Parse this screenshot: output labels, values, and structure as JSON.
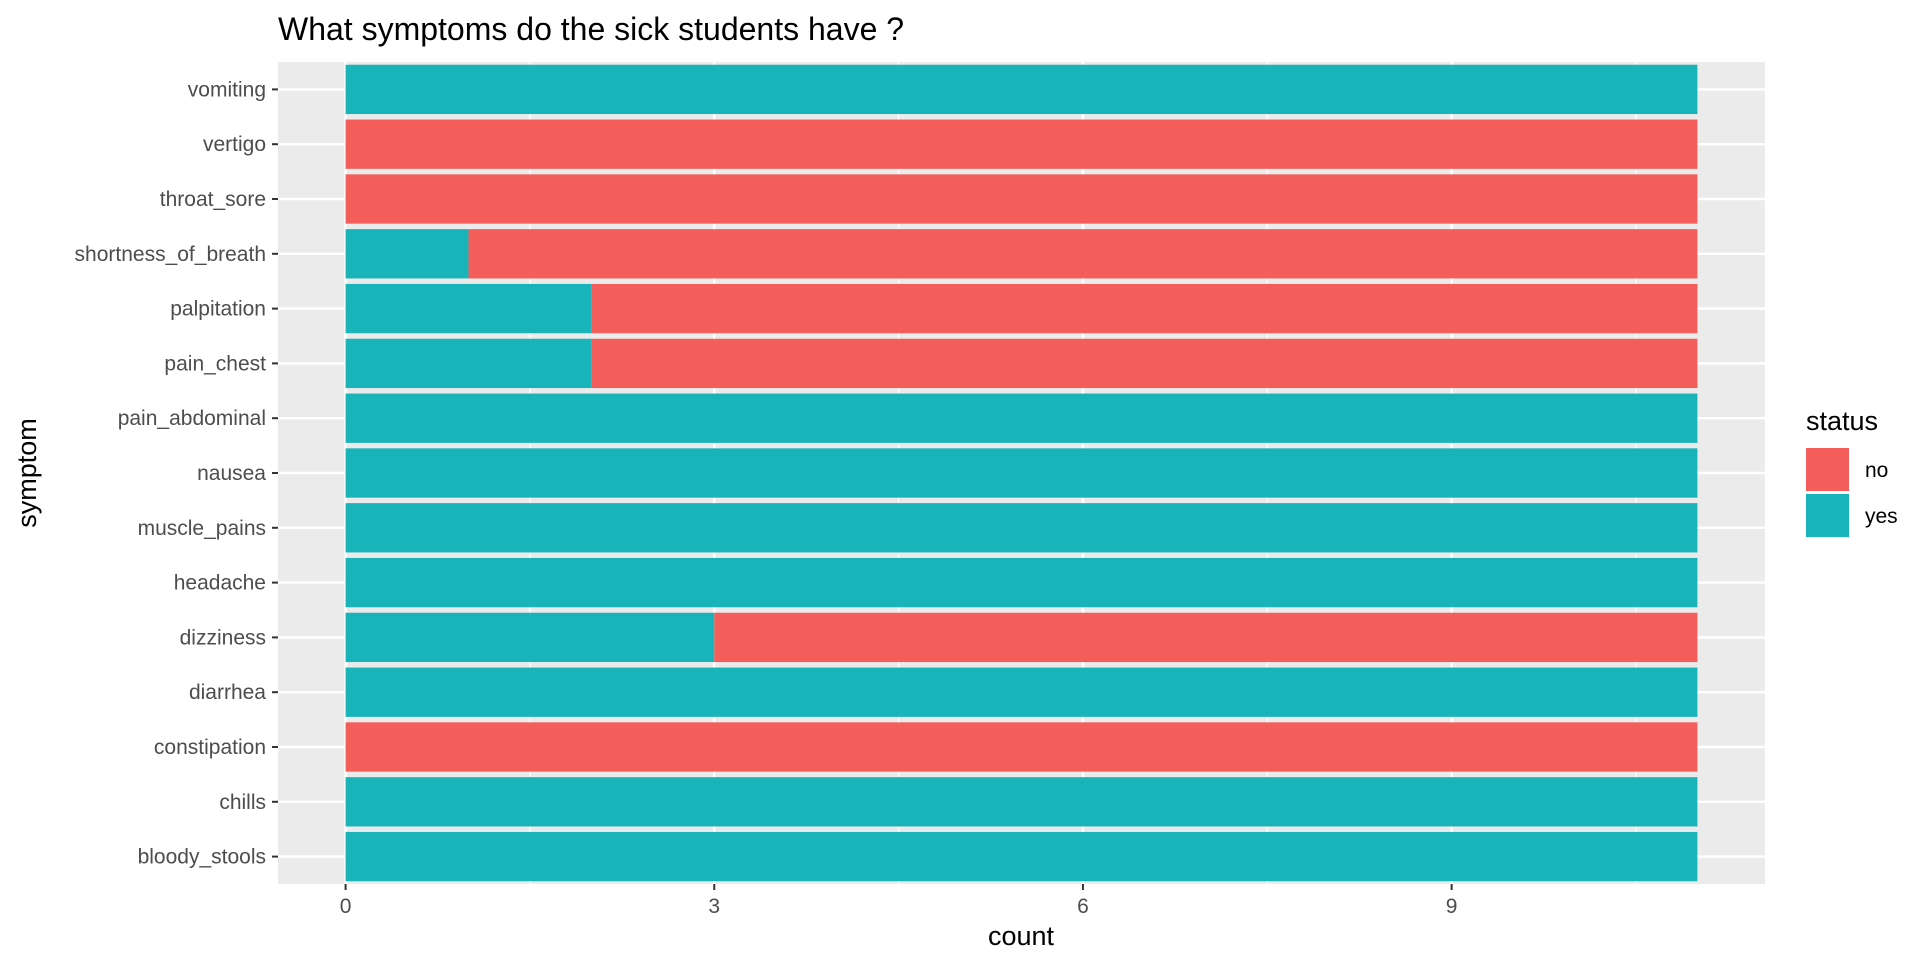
{
  "chart_data": {
    "type": "bar",
    "orientation": "horizontal",
    "stacked": true,
    "title": "What symptoms do the sick students have ?",
    "xlabel": "count",
    "ylabel": "symptom",
    "xlim": [
      -0.55,
      11.55
    ],
    "xticks": [
      0,
      3,
      6,
      9
    ],
    "xtick_labels": [
      "0",
      "3",
      "6",
      "9"
    ],
    "grid": true,
    "categories": [
      "bloody_stools",
      "chills",
      "constipation",
      "diarrhea",
      "dizziness",
      "headache",
      "muscle_pains",
      "nausea",
      "pain_abdominal",
      "pain_chest",
      "palpitation",
      "shortness_of_breath",
      "throat_sore",
      "vertigo",
      "vomiting"
    ],
    "series": [
      {
        "name": "yes",
        "color": "#19B4B9",
        "values": [
          11,
          11,
          0,
          11,
          3,
          11,
          11,
          11,
          11,
          2,
          2,
          1,
          0,
          0,
          11
        ]
      },
      {
        "name": "no",
        "color": "#F35E5A",
        "values": [
          0,
          0,
          11,
          0,
          8,
          0,
          0,
          0,
          0,
          9,
          9,
          10,
          11,
          11,
          0
        ]
      }
    ],
    "legend": {
      "title": "status",
      "position": "right",
      "entries": [
        {
          "label": "no",
          "color": "#F35E5A"
        },
        {
          "label": "yes",
          "color": "#19B4B9"
        }
      ]
    }
  }
}
